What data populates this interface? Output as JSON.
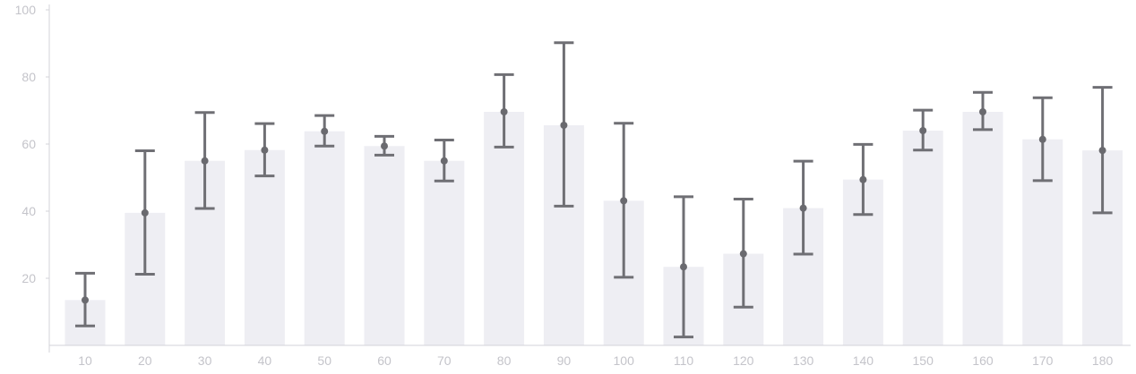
{
  "chart_data": {
    "type": "bar",
    "title": "",
    "xlabel": "",
    "ylabel": "",
    "ylim": [
      0,
      100
    ],
    "y_ticks": [
      20,
      40,
      60,
      80,
      100
    ],
    "grid": false,
    "legend": "none",
    "categories": [
      "10",
      "20",
      "30",
      "40",
      "50",
      "60",
      "70",
      "80",
      "90",
      "100",
      "110",
      "120",
      "130",
      "140",
      "150",
      "160",
      "170",
      "180"
    ],
    "values": [
      13.5,
      39.5,
      55,
      58.2,
      63.8,
      59.4,
      55,
      69.6,
      65.6,
      43.1,
      23.4,
      27.3,
      40.9,
      49.4,
      64,
      69.6,
      61.4,
      58.1
    ],
    "error_low": [
      5.8,
      21.2,
      40.8,
      50.5,
      59.4,
      56.7,
      49,
      59.1,
      41.5,
      20.3,
      2.5,
      11.4,
      27.2,
      39,
      58.2,
      64.3,
      49.1,
      39.5
    ],
    "error_high": [
      21.5,
      58,
      69.4,
      66.1,
      68.5,
      62.3,
      61.2,
      80.7,
      90.2,
      66.2,
      44.3,
      43.6,
      54.9,
      59.9,
      70.1,
      75.4,
      73.8,
      76.9
    ],
    "colors": {
      "bar": "#eeeef3",
      "error_bar": "#6f6f74",
      "point": "#6a6a6f",
      "axis": "#d3d3d8",
      "tick_text": "#c4c4ca"
    }
  }
}
